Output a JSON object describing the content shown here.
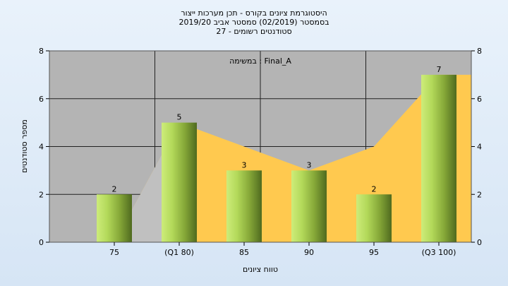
{
  "chart_data": {
    "type": "bar",
    "title_lines": [
      "היסטוגרמת ציונים בקורס - תכן מערכות ייצור",
      "בסמסטר  (02/2019)  סמסטר אביב 2019/20",
      "סטודנטים רשומים - 27"
    ],
    "annotation": "במשימה : Final_A",
    "categories": [
      "75",
      "(Q1 80)",
      "85",
      "90",
      "95",
      "(Q3 100)"
    ],
    "values": [
      2,
      5,
      3,
      3,
      2,
      7
    ],
    "data_labels": [
      "2",
      "5",
      "3",
      "3",
      "2",
      "7"
    ],
    "area_values": [
      0,
      5,
      4,
      3,
      4,
      7
    ],
    "area_start_value": 0,
    "xlabel": "טווח ציונים",
    "ylabel": "מספר סטודנטים",
    "ylim": [
      0,
      8
    ],
    "yticks": [
      "0",
      "2",
      "4",
      "6",
      "8"
    ],
    "y_axis_right": true,
    "grid": true,
    "colors": {
      "plot_background": "#b4b4b4",
      "area": "#ffc94f",
      "area_left": "#c0c0c0",
      "bar_light": "#cdec7a",
      "bar_mid": "#9cc43e",
      "bar_dark": "#4f6a1f"
    }
  }
}
